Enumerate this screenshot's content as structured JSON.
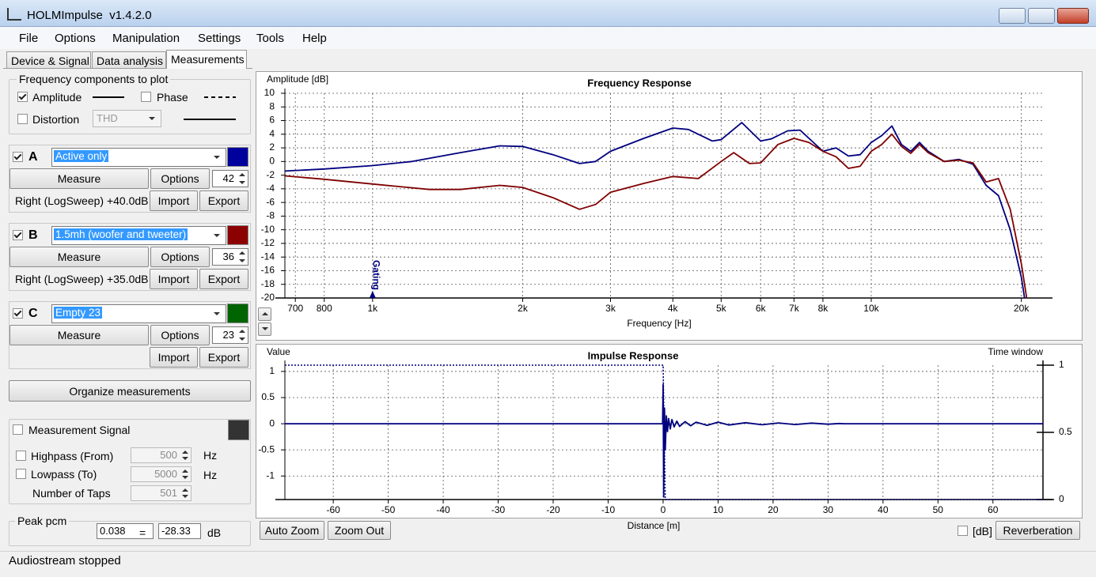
{
  "window": {
    "title": "HOLMImpulse  v1.4.2.0"
  },
  "menu": [
    "File",
    "Options",
    "Manipulation",
    "Settings",
    "Tools",
    "Help"
  ],
  "tabs": [
    "Device & Signal",
    "Data analysis",
    "Measurements"
  ],
  "active_tab": 2,
  "frequency_components": {
    "title": "Frequency components to plot",
    "amplitude": {
      "label": "Amplitude",
      "checked": true
    },
    "phase": {
      "label": "Phase",
      "checked": false
    },
    "distortion": {
      "label": "Distortion",
      "checked": false,
      "mode": "THD"
    }
  },
  "measurements": [
    {
      "letter": "A",
      "enabled": true,
      "name": "Active only",
      "color": "#00009c",
      "measure": "Measure",
      "options": "Options",
      "count": 42,
      "info": "Right (LogSweep) +40.0dB",
      "import": "Import",
      "export": "Export"
    },
    {
      "letter": "B",
      "enabled": true,
      "name": "1.5mh (woofer and tweeter)",
      "color": "#8b0000",
      "measure": "Measure",
      "options": "Options",
      "count": 36,
      "info": "Right (LogSweep) +35.0dB",
      "import": "Import",
      "export": "Export"
    },
    {
      "letter": "C",
      "enabled": true,
      "name": "Empty 23",
      "color": "#006400",
      "measure": "Measure",
      "options": "Options",
      "count": 23,
      "import": "Import",
      "export": "Export"
    }
  ],
  "organize": "Organize measurements",
  "signal": {
    "label": "Measurement Signal",
    "checked": false,
    "color": "#333333",
    "highpass": {
      "label": "Highpass (From)",
      "checked": false,
      "value": 500,
      "unit": "Hz"
    },
    "lowpass": {
      "label": "Lowpass (To)",
      "checked": false,
      "value": 5000,
      "unit": "Hz"
    },
    "taps": {
      "label": "Number of Taps",
      "value": 501
    }
  },
  "peak": {
    "title": "Peak pcm",
    "value": 0.038,
    "equals": "=",
    "db": -28.33,
    "unit": "dB"
  },
  "buttons": {
    "auto_zoom": "Auto Zoom",
    "zoom_out": "Zoom Out",
    "db_label": "[dB]",
    "db_checked": false,
    "reverberation": "Reverberation"
  },
  "status": "Audiostream stopped",
  "chart_data": [
    {
      "type": "line",
      "title": "Frequency Response",
      "y_label": "Amplitude [dB]",
      "x_label": "Frequency [Hz]",
      "xscale": "log",
      "xlim": [
        667,
        22100
      ],
      "ylim": [
        -20,
        10
      ],
      "grid": true,
      "xticks": [
        700,
        800,
        {
          "value": 1000,
          "label": "1k"
        },
        {
          "value": 2000,
          "label": "2k"
        },
        {
          "value": 3000,
          "label": "3k"
        },
        {
          "value": 4000,
          "label": "4k"
        },
        {
          "value": 5000,
          "label": "5k"
        },
        {
          "value": 6000,
          "label": "6k"
        },
        {
          "value": 7000,
          "label": "7k"
        },
        {
          "value": 8000,
          "label": "8k"
        },
        {
          "value": 10000,
          "label": "10k"
        },
        {
          "value": 20000,
          "label": "20k"
        }
      ],
      "yticks": [
        10,
        8,
        6,
        4,
        2,
        0,
        -2,
        -4,
        -6,
        -8,
        -10,
        -12,
        -14,
        -16,
        -18,
        -20
      ],
      "annotations": [
        {
          "text": "Gating",
          "x": 1000
        }
      ],
      "series": [
        {
          "color": "#00007f",
          "x": [
            667,
            800,
            1000,
            1200,
            1500,
            1800,
            2000,
            2300,
            2600,
            2800,
            3000,
            3500,
            4000,
            4300,
            4800,
            5000,
            5500,
            6000,
            6300,
            6800,
            7200,
            7600,
            8000,
            8500,
            9000,
            9500,
            10000,
            10500,
            11000,
            11500,
            12000,
            12500,
            13000,
            14000,
            15000,
            16000,
            17000,
            18000,
            19000,
            20000,
            20300
          ],
          "values": [
            -1.4,
            -1.1,
            -0.6,
            0,
            1.3,
            2.3,
            2.2,
            1.0,
            -0.3,
            0,
            1.5,
            3.4,
            4.9,
            4.7,
            3,
            3.2,
            5.7,
            3,
            3.3,
            4.5,
            4.6,
            3,
            1.5,
            2,
            0.8,
            1,
            2.8,
            3.8,
            5.2,
            2.5,
            1.5,
            2.8,
            1.5,
            0,
            0.3,
            -0.4,
            -3.5,
            -5,
            -10,
            -17,
            -20
          ]
        },
        {
          "color": "#7f0000",
          "x": [
            667,
            800,
            1000,
            1300,
            1500,
            1800,
            2000,
            2300,
            2600,
            2800,
            3000,
            3500,
            4000,
            4500,
            5000,
            5300,
            5700,
            6000,
            6500,
            7000,
            7500,
            8000,
            8500,
            9000,
            9500,
            10000,
            10500,
            11000,
            11500,
            12000,
            12500,
            13000,
            14000,
            15000,
            16000,
            17000,
            18000,
            19000,
            20000,
            20500
          ],
          "values": [
            -2.1,
            -2.6,
            -3.3,
            -4.1,
            -4.1,
            -3.5,
            -3.8,
            -5.3,
            -7,
            -6.3,
            -4.5,
            -3.2,
            -2.2,
            -2.5,
            0,
            1.3,
            -0.3,
            -0.2,
            2.5,
            3.4,
            2.8,
            1.5,
            0.7,
            -1,
            -0.7,
            1.5,
            2.5,
            4,
            2.2,
            1.2,
            2.5,
            1.3,
            0,
            0.2,
            -0.2,
            -3,
            -2.5,
            -7,
            -15,
            -20
          ]
        }
      ]
    },
    {
      "type": "line",
      "title": "Impulse Response",
      "y_label": "Value",
      "x_label": "Distance [m]",
      "y2_label": "Time window",
      "xlim": [
        -68.8,
        69.1
      ],
      "ylim": [
        -1.45,
        1.12
      ],
      "y2lim": [
        0,
        1
      ],
      "grid": true,
      "xticks": [
        -60,
        -50,
        -40,
        -30,
        -20,
        -10,
        0,
        10,
        20,
        30,
        40,
        50,
        60
      ],
      "yticks": [
        1,
        0.5,
        0,
        -0.5,
        -1
      ],
      "y2ticks": [
        1,
        0.5,
        0
      ],
      "series": [
        {
          "color": "#00007f",
          "x": [
            -68.8,
            -0.1,
            0,
            0.1,
            0.25,
            0.4,
            0.6,
            0.8,
            1.0,
            1.3,
            1.6,
            2,
            2.5,
            3,
            4,
            5,
            6,
            8,
            10,
            12,
            15,
            18,
            21,
            24,
            27,
            30,
            32,
            33,
            69.1
          ],
          "values": [
            0,
            0,
            0.75,
            -1.4,
            0.3,
            -0.5,
            0.15,
            -0.15,
            0.1,
            -0.1,
            0.08,
            -0.06,
            0.05,
            -0.05,
            0.04,
            -0.04,
            0.03,
            -0.03,
            0.03,
            -0.025,
            0.02,
            -0.02,
            0.015,
            -0.015,
            0.012,
            -0.01,
            0.005,
            0,
            0
          ]
        },
        {
          "color": "#00007f",
          "axis": "y2",
          "style": "dotted",
          "x": [
            -68.8,
            0,
            0.4,
            69.1
          ],
          "values": [
            1,
            1,
            0,
            0
          ]
        }
      ]
    }
  ]
}
